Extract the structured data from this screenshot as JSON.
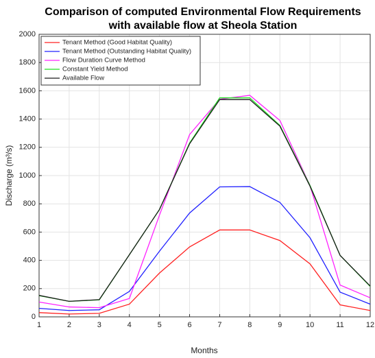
{
  "chart_data": {
    "type": "line",
    "title": [
      "Comparison of computed Environmental Flow Requirements",
      "with available flow at Sheola Station"
    ],
    "x_label": "Months",
    "y_label": "Discharge (m³/s)",
    "x": [
      1,
      2,
      3,
      4,
      5,
      6,
      7,
      8,
      9,
      10,
      11,
      12
    ],
    "xlim": [
      1,
      12
    ],
    "xticks": [
      1,
      2,
      3,
      4,
      5,
      6,
      7,
      8,
      9,
      10,
      11,
      12
    ],
    "ylim": [
      0,
      2000
    ],
    "yticks": [
      0,
      200,
      400,
      600,
      800,
      1000,
      1200,
      1400,
      1600,
      1800,
      2000
    ],
    "grid": true,
    "legend": "upper-left",
    "series": [
      {
        "name": "Tenant Method (Good Habitat Quality)",
        "color": "#ff2020",
        "values": [
          30,
          20,
          25,
          90,
          310,
          495,
          615,
          615,
          540,
          375,
          85,
          45
        ]
      },
      {
        "name": "Tenant Method (Outstanding Habitat Quality)",
        "color": "#2020ff",
        "values": [
          60,
          45,
          50,
          180,
          465,
          735,
          920,
          922,
          810,
          560,
          175,
          90
        ]
      },
      {
        "name": "Flow Duration Curve Method",
        "color": "#ff20ff",
        "values": [
          105,
          70,
          65,
          130,
          720,
          1290,
          1540,
          1568,
          1390,
          930,
          225,
          135
        ]
      },
      {
        "name": "Constant Yield Method",
        "color": "#20e020",
        "values": [
          150,
          110,
          120,
          440,
          760,
          1230,
          1550,
          1550,
          1355,
          930,
          435,
          215
        ]
      },
      {
        "name": "Available Flow",
        "color": "#1a1a1a",
        "values": [
          152,
          110,
          122,
          440,
          760,
          1225,
          1538,
          1538,
          1350,
          925,
          435,
          218
        ]
      }
    ]
  }
}
